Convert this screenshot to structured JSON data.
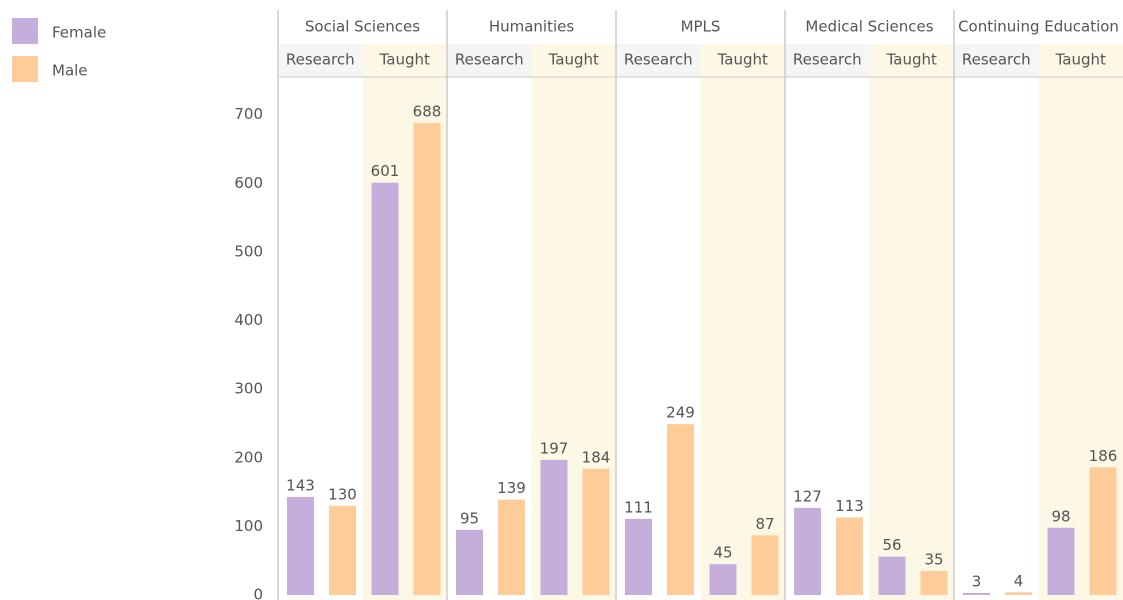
{
  "chart_data": {
    "type": "bar",
    "groups": [
      "Social Sciences",
      "Humanities",
      "MPLS",
      "Medical Sciences",
      "Continuing Education"
    ],
    "categories": [
      "Research",
      "Taught",
      "Research",
      "Taught",
      "Research",
      "Taught",
      "Research",
      "Taught",
      "Research",
      "Taught"
    ],
    "series": [
      {
        "name": "Female",
        "color": "#c5aedb",
        "values": [
          143,
          601,
          95,
          197,
          111,
          45,
          127,
          56,
          3,
          98
        ]
      },
      {
        "name": "Male",
        "color": "#ffcc99",
        "values": [
          130,
          688,
          139,
          184,
          249,
          87,
          113,
          35,
          4,
          186
        ]
      }
    ],
    "ylim": [
      0,
      755
    ],
    "yticks": [
      0,
      100,
      200,
      300,
      400,
      500,
      600,
      700
    ],
    "legend": "top-left",
    "highlight_color": "#fdf8e6"
  }
}
